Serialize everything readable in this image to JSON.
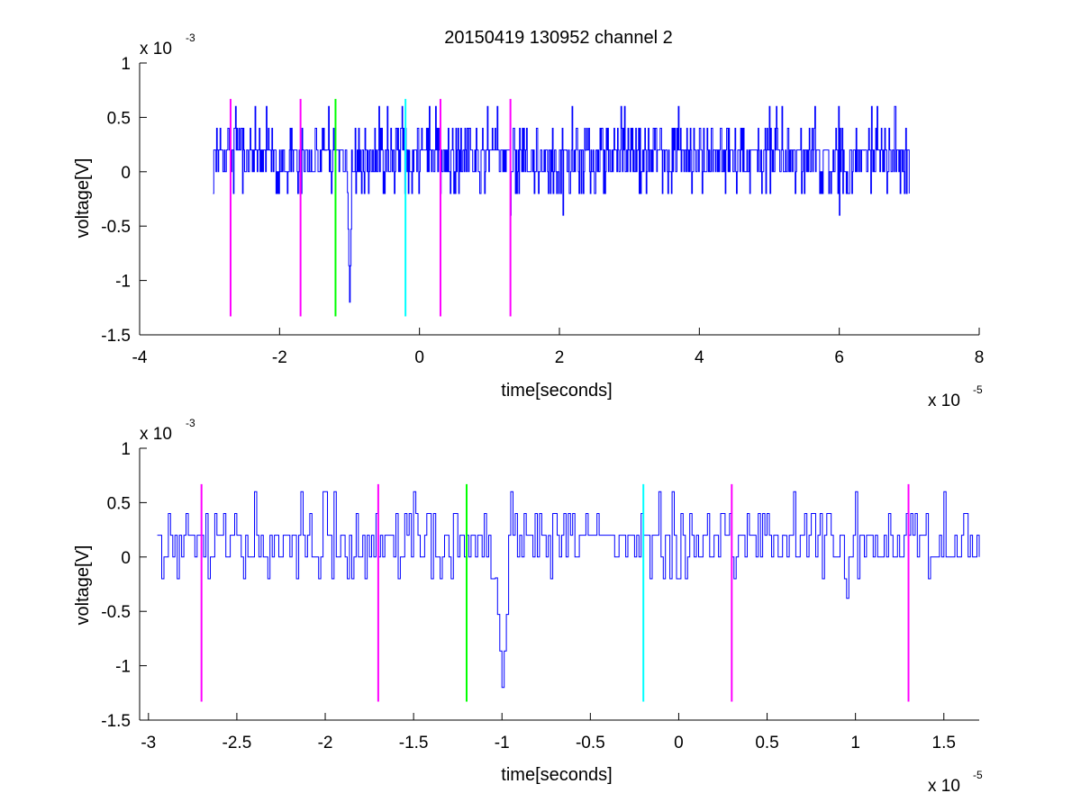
{
  "figure": {
    "background": "#ffffff"
  },
  "colors": {
    "signal": "#0000ff",
    "magenta": "#ff00ff",
    "green": "#00ff00",
    "cyan": "#00ffff",
    "axes": "#000000"
  },
  "chart_data": [
    {
      "type": "line",
      "title": "20150419 130952 channel 2",
      "xlabel": "time[seconds]",
      "ylabel": "voltage[V]",
      "x_multiplier": {
        "base": "x 10",
        "exponent": "-5"
      },
      "y_multiplier": {
        "base": "x 10",
        "exponent": "-3"
      },
      "xlim": [
        -4,
        8
      ],
      "ylim": [
        -1.5,
        1
      ],
      "xticks": [
        -4,
        -2,
        0,
        2,
        4,
        6,
        8
      ],
      "xtick_labels": [
        "-4",
        "-2",
        "0",
        "2",
        "4",
        "6",
        "8"
      ],
      "yticks": [
        -1.5,
        -1,
        -0.5,
        0,
        0.5,
        1
      ],
      "ytick_labels": [
        "-1.5",
        "-1",
        "-0.5",
        "0",
        "0.5",
        "1"
      ],
      "grid": false,
      "series": [
        {
          "color": "#0000ff",
          "x_range": [
            -2.95,
            7.0
          ],
          "seed": 11,
          "baseline": [
            0,
            0.2
          ],
          "spikes": [
            {
              "x": -1.0,
              "y": -1.2
            },
            {
              "x": -0.25,
              "y": 0.6
            },
            {
              "x": 1.3,
              "y": -0.4
            },
            {
              "x": 2.05,
              "y": -0.4
            },
            {
              "x": 6.0,
              "y": -0.4
            },
            {
              "x": 5.0,
              "y": 0.6
            },
            {
              "x": 5.65,
              "y": 0.6
            },
            {
              "x": -2.95,
              "y": -0.2
            }
          ]
        }
      ],
      "markers": [
        {
          "x": -2.7,
          "color": "#ff00ff",
          "y_range": [
            -1.33,
            0.67
          ]
        },
        {
          "x": -1.7,
          "color": "#ff00ff",
          "y_range": [
            -1.33,
            0.67
          ]
        },
        {
          "x": -1.2,
          "color": "#00ff00",
          "y_range": [
            -1.33,
            0.67
          ]
        },
        {
          "x": -0.2,
          "color": "#00ffff",
          "y_range": [
            -1.33,
            0.67
          ]
        },
        {
          "x": 0.3,
          "color": "#ff00ff",
          "y_range": [
            -1.33,
            0.67
          ]
        },
        {
          "x": 1.3,
          "color": "#ff00ff",
          "y_range": [
            -1.33,
            0.67
          ]
        }
      ]
    },
    {
      "type": "line",
      "title": "",
      "xlabel": "time[seconds]",
      "ylabel": "voltage[V]",
      "x_multiplier": {
        "base": "x 10",
        "exponent": "-5"
      },
      "y_multiplier": {
        "base": "x 10",
        "exponent": "-3"
      },
      "xlim": [
        -3.05,
        1.7
      ],
      "ylim": [
        -1.5,
        1
      ],
      "xticks": [
        -3,
        -2.5,
        -2,
        -1.5,
        -1,
        -0.5,
        0,
        0.5,
        1,
        1.5
      ],
      "xtick_labels": [
        "-3",
        "-2.5",
        "-2",
        "-1.5",
        "-1",
        "-0.5",
        "0",
        "0.5",
        "1",
        "1.5"
      ],
      "yticks": [
        -1.5,
        -1,
        -0.5,
        0,
        0.5,
        1
      ],
      "ytick_labels": [
        "-1.5",
        "-1",
        "-0.5",
        "0",
        "0.5",
        "1"
      ],
      "grid": false,
      "series": [
        {
          "color": "#0000ff",
          "x_range": [
            -2.95,
            1.7
          ],
          "seed": 23,
          "baseline": [
            0,
            0.2
          ],
          "spikes": [
            {
              "x": -2.95,
              "y": 0.2
            },
            {
              "x": -2.93,
              "y": -0.2
            },
            {
              "x": -1.0,
              "y": -1.2
            },
            {
              "x": -1.5,
              "y": 0.6
            },
            {
              "x": 0.65,
              "y": 0.6
            },
            {
              "x": 1.0,
              "y": 0.6
            },
            {
              "x": 1.5,
              "y": 0.6
            },
            {
              "x": 0.95,
              "y": -0.38
            }
          ]
        }
      ],
      "markers": [
        {
          "x": -2.7,
          "color": "#ff00ff",
          "y_range": [
            -1.33,
            0.67
          ]
        },
        {
          "x": -1.7,
          "color": "#ff00ff",
          "y_range": [
            -1.33,
            0.67
          ]
        },
        {
          "x": -1.2,
          "color": "#00ff00",
          "y_range": [
            -1.33,
            0.67
          ]
        },
        {
          "x": -0.2,
          "color": "#00ffff",
          "y_range": [
            -1.33,
            0.67
          ]
        },
        {
          "x": 0.3,
          "color": "#ff00ff",
          "y_range": [
            -1.33,
            0.67
          ]
        },
        {
          "x": 1.3,
          "color": "#ff00ff",
          "y_range": [
            -1.33,
            0.67
          ]
        }
      ]
    }
  ]
}
